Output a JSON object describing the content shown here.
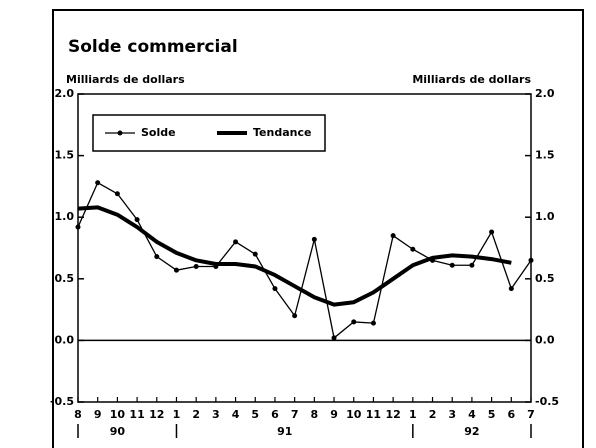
{
  "chart_data": {
    "type": "line",
    "title": "Solde commercial",
    "ylabel": "Milliards de dollars",
    "y2label": "Milliards de dollars",
    "categories": [
      "8",
      "9",
      "10",
      "11",
      "12",
      "1",
      "2",
      "3",
      "4",
      "5",
      "6",
      "7",
      "8",
      "9",
      "10",
      "11",
      "12",
      "1",
      "2",
      "3",
      "4",
      "5",
      "6",
      "7"
    ],
    "groups": [
      {
        "label": "90",
        "count": 5
      },
      {
        "label": "91",
        "count": 12
      },
      {
        "label": "92",
        "count": 7
      }
    ],
    "series": [
      {
        "name": "Solde",
        "color": "#000000",
        "markers": true,
        "values": [
          0.92,
          1.28,
          1.19,
          0.98,
          0.68,
          0.57,
          0.6,
          0.6,
          0.8,
          0.7,
          0.42,
          0.2,
          0.82,
          0.02,
          0.15,
          0.14,
          0.85,
          0.74,
          0.65,
          0.61,
          0.61,
          0.88,
          0.42,
          0.65
        ]
      },
      {
        "name": "Tendance",
        "color": "#000000",
        "markers": false,
        "values": [
          1.07,
          1.08,
          1.02,
          0.92,
          0.8,
          0.71,
          0.65,
          0.62,
          0.62,
          0.6,
          0.53,
          0.44,
          0.35,
          0.29,
          0.31,
          0.39,
          0.5,
          0.61,
          0.67,
          0.69,
          0.68,
          0.66,
          0.63,
          null
        ]
      }
    ],
    "ylim": [
      -0.5,
      2.0
    ],
    "yticks": [
      {
        "value": -0.5,
        "label": "-0.5"
      },
      {
        "value": 0,
        "label": "0.0"
      },
      {
        "value": 0.5,
        "label": "0.5"
      },
      {
        "value": 1,
        "label": "1.0"
      },
      {
        "value": 1.5,
        "label": "1.5"
      },
      {
        "value": 2,
        "label": "2.0"
      }
    ],
    "y2lim": [
      -0.5,
      2.0
    ],
    "y2ticks": [
      {
        "value": -0.5,
        "label": "-0.5"
      },
      {
        "value": 0,
        "label": "0.0"
      },
      {
        "value": 0.5,
        "label": "0.5"
      },
      {
        "value": 1,
        "label": "1.0"
      },
      {
        "value": 1.5,
        "label": "1.5"
      },
      {
        "value": 2,
        "label": "2.0"
      }
    ],
    "legend": "upper left"
  }
}
